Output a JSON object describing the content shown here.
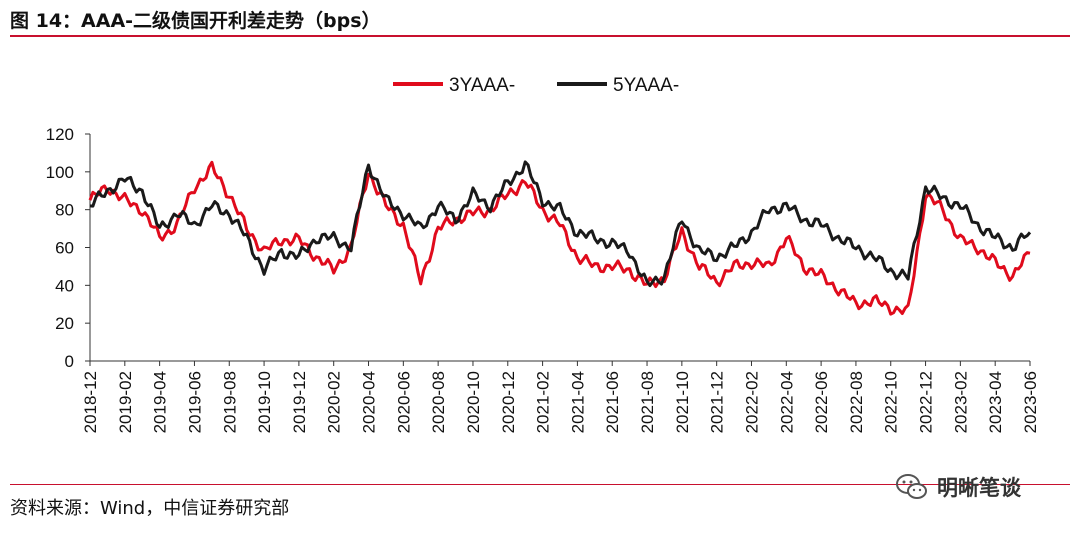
{
  "header": {
    "title": "图 14：AAA-二级债国开利差走势（bps）"
  },
  "footer": {
    "source": "资料来源：Wind，中信证券研究部",
    "watermark": "明晰笔谈"
  },
  "colors": {
    "accent": "#c8102e",
    "series_3y": "#e00b1c",
    "series_5y": "#1a1a1a"
  },
  "chart_data": {
    "type": "line",
    "title": "",
    "xlabel": "",
    "ylabel": "",
    "ylim": [
      0,
      120
    ],
    "yticks": [
      0,
      20,
      40,
      60,
      80,
      100,
      120
    ],
    "legend_position": "top-center",
    "grid": false,
    "x_tick_labels": [
      "2018-12",
      "2019-02",
      "2019-04",
      "2019-06",
      "2019-08",
      "2019-10",
      "2019-12",
      "2020-02",
      "2020-04",
      "2020-06",
      "2020-08",
      "2020-10",
      "2020-12",
      "2021-02",
      "2021-04",
      "2021-06",
      "2021-08",
      "2021-10",
      "2021-12",
      "2022-02",
      "2022-04",
      "2022-06",
      "2022-08",
      "2022-10",
      "2022-12",
      "2023-02",
      "2023-04",
      "2023-06"
    ],
    "x": [
      "2018-12",
      "2019-01",
      "2019-02",
      "2019-03",
      "2019-04",
      "2019-05",
      "2019-06",
      "2019-07",
      "2019-08",
      "2019-09",
      "2019-10",
      "2019-11",
      "2019-12",
      "2020-01",
      "2020-02",
      "2020-03",
      "2020-04",
      "2020-05",
      "2020-06",
      "2020-07",
      "2020-08",
      "2020-09",
      "2020-10",
      "2020-11",
      "2020-12",
      "2021-01",
      "2021-02",
      "2021-03",
      "2021-04",
      "2021-05",
      "2021-06",
      "2021-07",
      "2021-08",
      "2021-09",
      "2021-10",
      "2021-11",
      "2021-12",
      "2022-01",
      "2022-02",
      "2022-03",
      "2022-04",
      "2022-05",
      "2022-06",
      "2022-07",
      "2022-08",
      "2022-09",
      "2022-10",
      "2022-11",
      "2022-12",
      "2023-01",
      "2023-02",
      "2023-03",
      "2023-04",
      "2023-05",
      "2023-06"
    ],
    "series": [
      {
        "name": "3YAAA-",
        "values": [
          85,
          92,
          85,
          80,
          65,
          72,
          92,
          102,
          88,
          70,
          58,
          64,
          64,
          55,
          48,
          60,
          100,
          82,
          72,
          42,
          70,
          75,
          78,
          80,
          88,
          95,
          80,
          72,
          55,
          50,
          50,
          48,
          40,
          44,
          68,
          50,
          42,
          50,
          52,
          50,
          65,
          50,
          45,
          38,
          30,
          32,
          28,
          26,
          88,
          80,
          64,
          60,
          52,
          45,
          57
        ]
      },
      {
        "name": "5YAAA-",
        "values": [
          82,
          90,
          96,
          90,
          70,
          78,
          72,
          82,
          78,
          65,
          48,
          58,
          55,
          65,
          65,
          60,
          104,
          85,
          78,
          70,
          82,
          75,
          88,
          82,
          94,
          104,
          85,
          80,
          68,
          65,
          62,
          58,
          40,
          45,
          75,
          58,
          55,
          60,
          68,
          80,
          82,
          75,
          72,
          65,
          60,
          55,
          48,
          44,
          92,
          86,
          82,
          72,
          65,
          60,
          68
        ]
      }
    ]
  }
}
